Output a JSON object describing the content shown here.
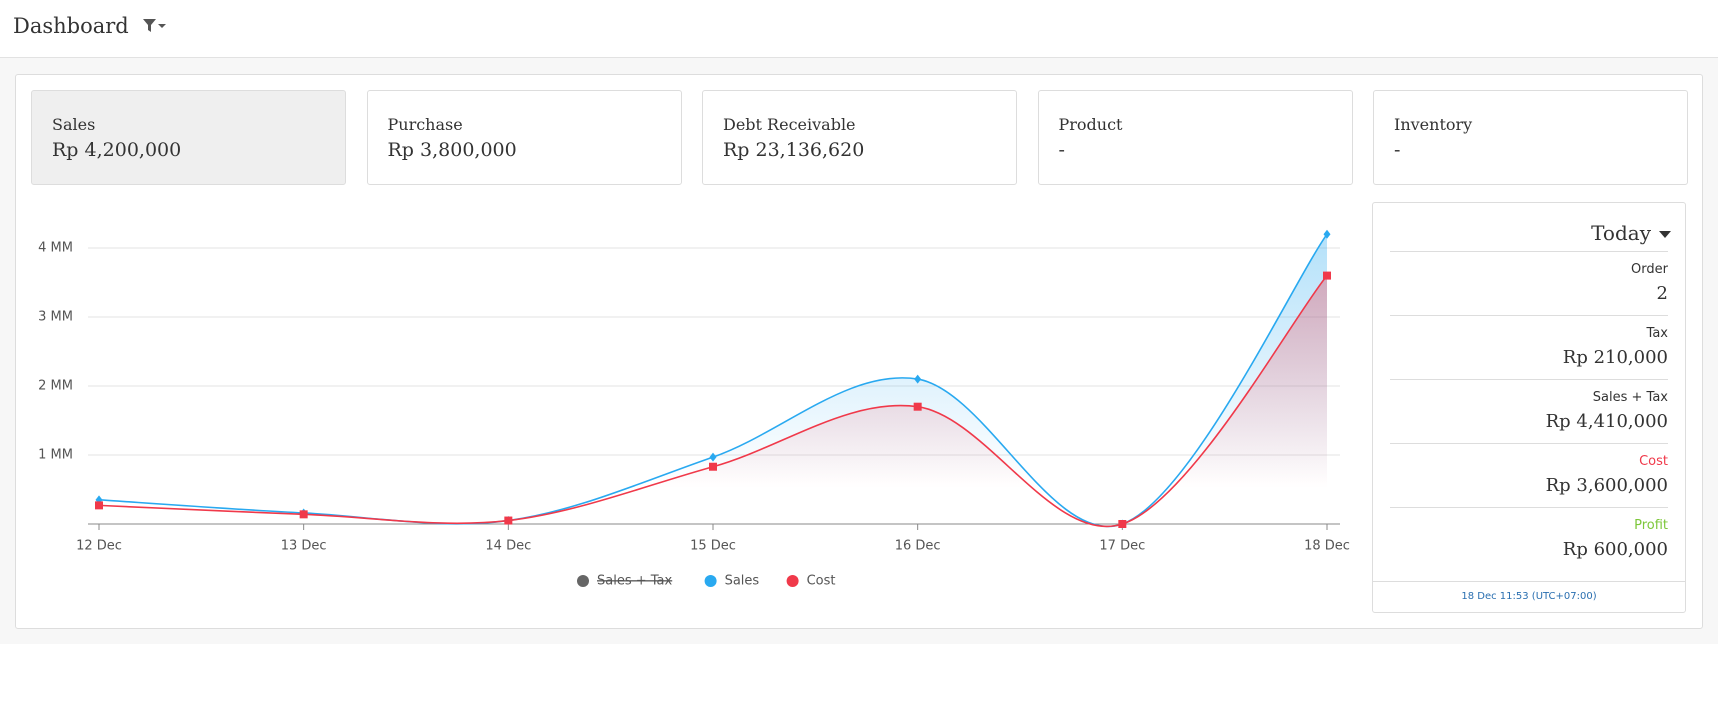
{
  "header": {
    "title": "Dashboard"
  },
  "cards": [
    {
      "label": "Sales",
      "value": "Rp 4,200,000",
      "active": true
    },
    {
      "label": "Purchase",
      "value": "Rp 3,800,000"
    },
    {
      "label": "Debt Receivable",
      "value": "Rp 23,136,620"
    },
    {
      "label": "Product",
      "value": "-"
    },
    {
      "label": "Inventory",
      "value": "-"
    }
  ],
  "chart_data": {
    "type": "line",
    "categories": [
      "12 Dec",
      "13 Dec",
      "14 Dec",
      "15 Dec",
      "16 Dec",
      "17 Dec",
      "18 Dec"
    ],
    "series": [
      {
        "name": "Sales + Tax",
        "color": "#666666",
        "hidden": true
      },
      {
        "name": "Sales",
        "color": "#29a9f0",
        "marker": "diamond",
        "values": [
          350000,
          160000,
          50000,
          970000,
          2100000,
          0,
          4200000
        ]
      },
      {
        "name": "Cost",
        "color": "#f0394a",
        "marker": "square",
        "values": [
          270000,
          140000,
          50000,
          830000,
          1700000,
          0,
          3600000
        ]
      }
    ],
    "ylim": [
      0,
      4500000
    ],
    "yticks": [
      {
        "value": 1000000,
        "label": "1 MM"
      },
      {
        "value": 2000000,
        "label": "2 MM"
      },
      {
        "value": 3000000,
        "label": "3 MM"
      },
      {
        "value": 4000000,
        "label": "4 MM"
      }
    ],
    "grid": true
  },
  "summary": {
    "period": "Today",
    "items": [
      {
        "label": "Order",
        "value": "2"
      },
      {
        "label": "Tax",
        "value": "Rp 210,000"
      },
      {
        "label": "Sales + Tax",
        "value": "Rp 4,410,000"
      },
      {
        "label": "Cost",
        "value": "Rp 3,600,000",
        "color": "#f0394a"
      },
      {
        "label": "Profit",
        "value": "Rp 600,000",
        "color": "#7dc73a"
      }
    ],
    "timestamp": "18 Dec 11:53 (UTC+07:00)"
  }
}
